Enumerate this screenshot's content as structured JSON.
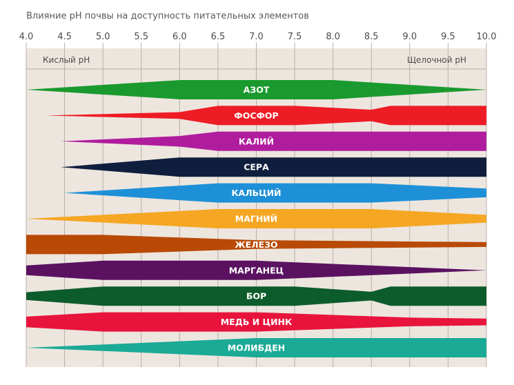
{
  "title": "Влияние рН почвы на доступность питательных элементов",
  "chart_data": {
    "type": "area",
    "title": "Влияние рН почвы на доступность питательных элементов",
    "x_ticks": [
      "4.0",
      "4.5",
      "5.0",
      "5.5",
      "6.0",
      "6.5",
      "7.0",
      "7.5",
      "8.0",
      "8.5",
      "9.0",
      "9.5",
      "10.0"
    ],
    "xlim": [
      4.0,
      10.0
    ],
    "left_label": "Кислый рН",
    "right_label": "Щелочной рН",
    "grid": true,
    "series": [
      {
        "name": "АЗОТ",
        "color": "#1a9a2e",
        "max_width": 1.0,
        "profile": [
          [
            4.0,
            0
          ],
          [
            6.0,
            1
          ],
          [
            8.0,
            1
          ],
          [
            10.0,
            0
          ]
        ]
      },
      {
        "name": "ФОСФОР",
        "color": "#ee1c25",
        "max_width": 1.0,
        "profile": [
          [
            4.25,
            0
          ],
          [
            6.0,
            0.35
          ],
          [
            6.5,
            1
          ],
          [
            7.5,
            1
          ],
          [
            8.5,
            0.6
          ],
          [
            8.75,
            1
          ],
          [
            10.0,
            1
          ]
        ]
      },
      {
        "name": "КАЛИЙ",
        "color": "#b01c9e",
        "max_width": 1.0,
        "profile": [
          [
            4.45,
            0
          ],
          [
            6.0,
            0.55
          ],
          [
            6.5,
            1
          ],
          [
            10.0,
            1
          ]
        ]
      },
      {
        "name": "СЕРА",
        "color": "#0f1e3c",
        "max_width": 1.0,
        "profile": [
          [
            4.45,
            0
          ],
          [
            6.0,
            1
          ],
          [
            10.0,
            1
          ]
        ]
      },
      {
        "name": "КАЛЬЦИЙ",
        "color": "#1e90d8",
        "max_width": 1.0,
        "profile": [
          [
            4.5,
            0
          ],
          [
            6.5,
            1
          ],
          [
            8.5,
            1
          ],
          [
            10.0,
            0.45
          ]
        ]
      },
      {
        "name": "МАГНИЙ",
        "color": "#f5a623",
        "max_width": 1.0,
        "profile": [
          [
            4.0,
            0
          ],
          [
            6.5,
            1
          ],
          [
            8.5,
            1
          ],
          [
            10.0,
            0.4
          ]
        ]
      },
      {
        "name": "ЖЕЛЕЗО",
        "color": "#b84a06",
        "max_width": 1.0,
        "profile": [
          [
            4.0,
            1
          ],
          [
            5.0,
            1
          ],
          [
            7.0,
            0.45
          ],
          [
            10.0,
            0.25
          ]
        ]
      },
      {
        "name": "МАРГАНЕЦ",
        "color": "#5a1260",
        "max_width": 1.0,
        "profile": [
          [
            4.0,
            0.5
          ],
          [
            5.0,
            1
          ],
          [
            7.0,
            1
          ],
          [
            10.0,
            0
          ]
        ]
      },
      {
        "name": "БОР",
        "color": "#0d5c2c",
        "max_width": 1.0,
        "profile": [
          [
            4.0,
            0.4
          ],
          [
            5.0,
            1
          ],
          [
            7.5,
            1
          ],
          [
            8.5,
            0.45
          ],
          [
            8.75,
            1
          ],
          [
            10.0,
            1
          ]
        ]
      },
      {
        "name": "МЕДЬ И ЦИНК",
        "color": "#e8143c",
        "max_width": 1.0,
        "profile": [
          [
            4.0,
            0.55
          ],
          [
            5.0,
            1
          ],
          [
            7.0,
            1
          ],
          [
            9.0,
            0.45
          ],
          [
            10.0,
            0.35
          ]
        ]
      },
      {
        "name": "МОЛИБДЕН",
        "color": "#1aaa96",
        "max_width": 1.0,
        "profile": [
          [
            4.0,
            0
          ],
          [
            7.0,
            1
          ],
          [
            10.0,
            1
          ]
        ]
      }
    ]
  }
}
